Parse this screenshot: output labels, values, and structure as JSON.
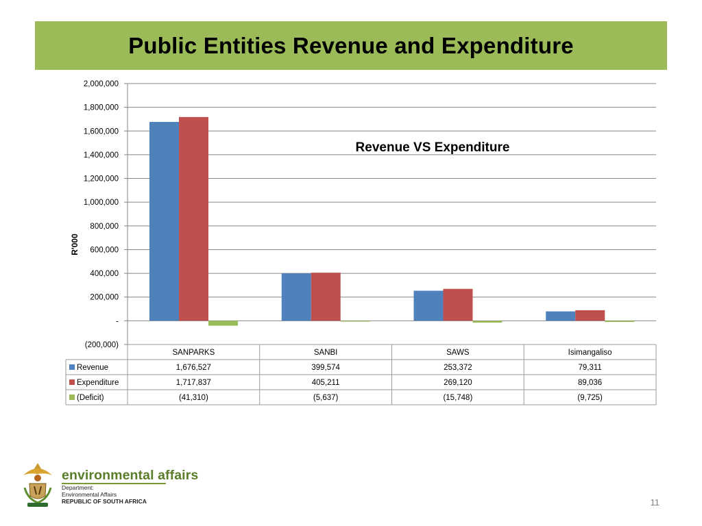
{
  "slide": {
    "title": "Public Entities Revenue and Expenditure",
    "page_number": "11"
  },
  "logo": {
    "name": "environmental affairs",
    "line1": "Department:",
    "line2": "Environmental Affairs",
    "line3": "REPUBLIC OF SOUTH AFRICA"
  },
  "chart_data": {
    "type": "bar",
    "title": "Revenue VS Expenditure",
    "ylabel": "R'000",
    "xlabel": "",
    "ylim": [
      -200000,
      2000000
    ],
    "yticks": [
      -200000,
      0,
      200000,
      400000,
      600000,
      800000,
      1000000,
      1200000,
      1400000,
      1600000,
      1800000,
      2000000
    ],
    "ytick_labels": [
      "(200,000)",
      "-",
      "200,000",
      "400,000",
      "600,000",
      "800,000",
      "1,000,000",
      "1,200,000",
      "1,400,000",
      "1,600,000",
      "1,800,000",
      "2,000,000"
    ],
    "grid": true,
    "categories": [
      "SANPARKS",
      "SANBI",
      "SAWS",
      "Isimangaliso"
    ],
    "series": [
      {
        "name": "Revenue",
        "color": "#4f81bd",
        "values": [
          1676527,
          399574,
          253372,
          79311
        ],
        "labels": [
          "1,676,527",
          "399,574",
          "253,372",
          "79,311"
        ]
      },
      {
        "name": "Expenditure",
        "color": "#c0504d",
        "values": [
          1717837,
          405211,
          269120,
          89036
        ],
        "labels": [
          "1,717,837",
          "405,211",
          "269,120",
          "89,036"
        ]
      },
      {
        "name": "(Deficit)",
        "color": "#9bbb59",
        "values": [
          -41310,
          -5637,
          -15748,
          -9725
        ],
        "labels": [
          "(41,310)",
          "(5,637)",
          "(15,748)",
          "(9,725)"
        ]
      }
    ],
    "legend": "data table below chart"
  }
}
